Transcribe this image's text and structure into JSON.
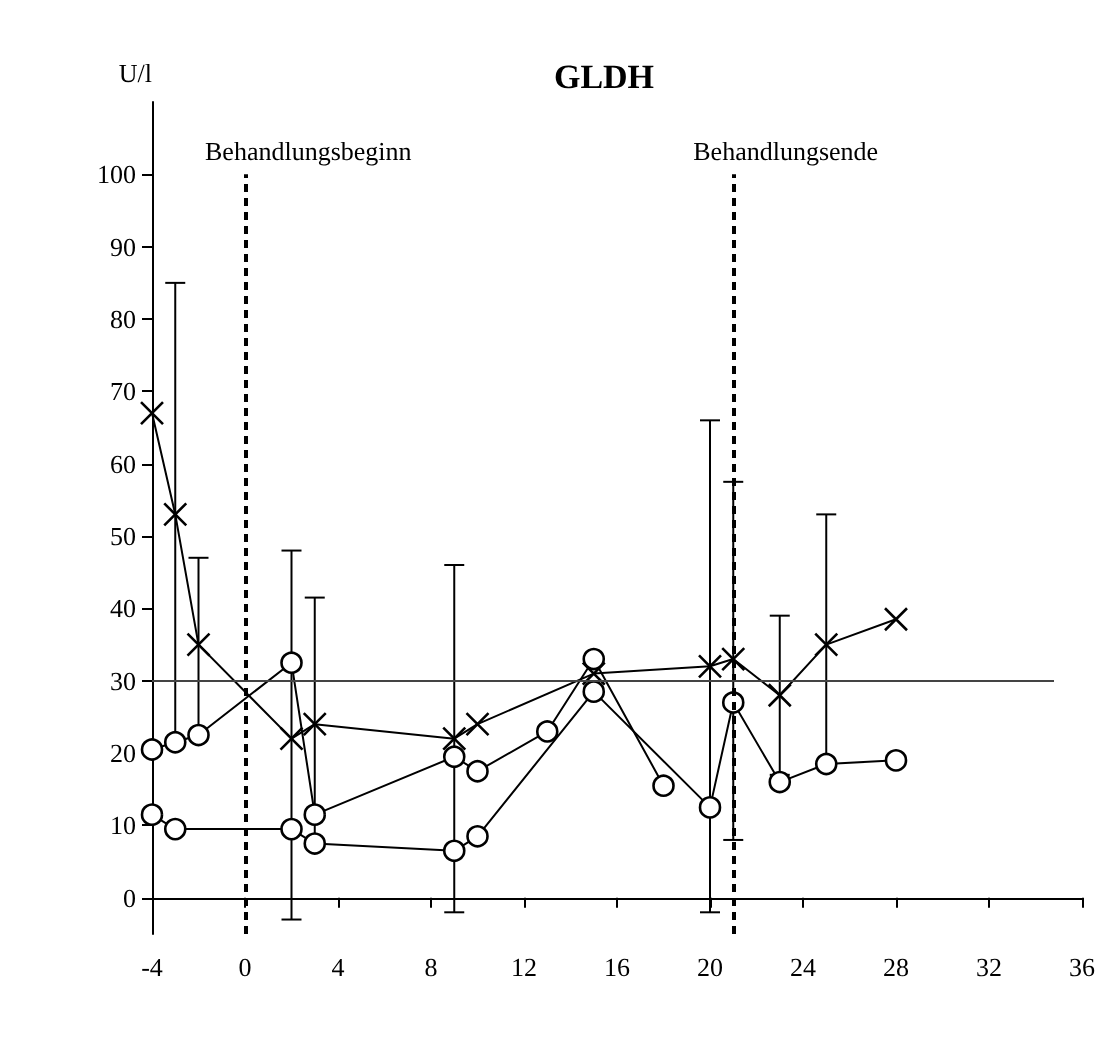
{
  "chart_data": {
    "type": "line",
    "title": "GLDH",
    "ylabel": "U/l",
    "xlim": [
      -4,
      36
    ],
    "xticks": [
      -4,
      0,
      4,
      8,
      12,
      16,
      20,
      24,
      28,
      32,
      36
    ],
    "ylim": [
      -5,
      110
    ],
    "yticks": [
      0,
      10,
      20,
      30,
      40,
      50,
      60,
      70,
      80,
      90,
      100
    ],
    "grid": false,
    "line_style": "solid",
    "series": [
      {
        "color": "#000000",
        "marker": "cross",
        "x": [
          -4,
          -3,
          -2,
          2,
          3,
          9,
          10,
          15,
          20,
          21,
          23,
          25,
          28
        ],
        "values": [
          67,
          53,
          35,
          22,
          24,
          22,
          24,
          31,
          32,
          33,
          28,
          35,
          38.5
        ],
        "errors": [
          null,
          [
            21,
            85
          ],
          [
            23,
            47
          ],
          [
            -3,
            48
          ],
          [
            8,
            41.5
          ],
          [
            -2,
            46
          ],
          null,
          null,
          [
            -2,
            66
          ],
          [
            8,
            57.5
          ],
          [
            17,
            39
          ],
          [
            18,
            53
          ],
          null
        ]
      },
      {
        "color": "#000000",
        "marker": "circle",
        "x": [
          -4,
          -3,
          -2,
          2,
          3,
          9,
          10,
          13,
          15,
          18
        ],
        "values": [
          20.5,
          21.5,
          22.5,
          32.5,
          11.5,
          19.5,
          17.5,
          23,
          33,
          15.5
        ]
      },
      {
        "color": "#000000",
        "marker": "circle",
        "x": [
          -4,
          -3,
          2,
          3,
          9,
          10,
          15,
          20,
          21,
          23,
          25,
          28
        ],
        "values": [
          11.5,
          9.5,
          9.5,
          7.5,
          6.5,
          8.5,
          28.5,
          12.5,
          27,
          16,
          18.5,
          19
        ]
      }
    ],
    "ref_lines": [
      {
        "axis": "x",
        "value": 0,
        "label": "Behandlungsbeginn",
        "line_style": "dashed"
      },
      {
        "axis": "x",
        "value": 21,
        "label": "Behandlungsende",
        "line_style": "dashed"
      },
      {
        "axis": "y",
        "value": 30,
        "label": null,
        "line_style": "solid",
        "color": "#444444"
      }
    ]
  }
}
